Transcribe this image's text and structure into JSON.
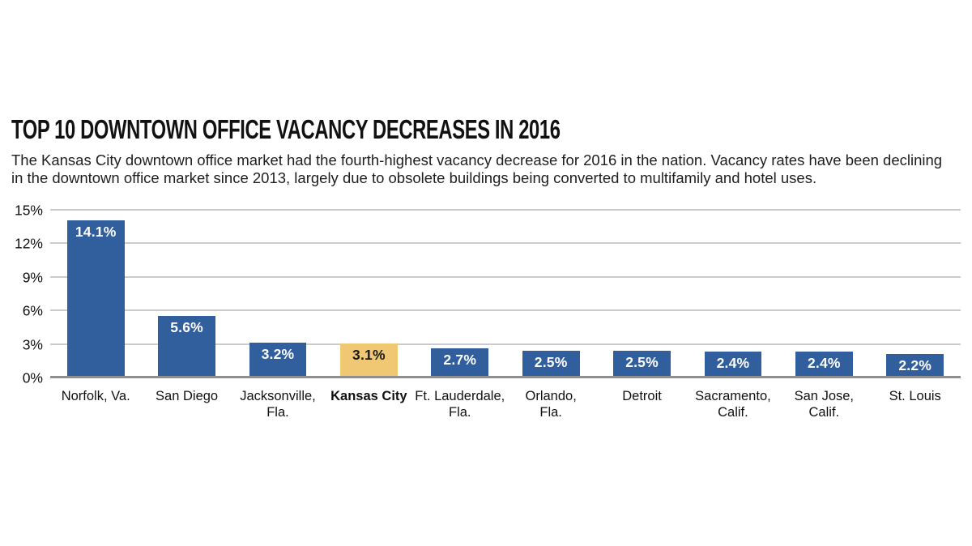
{
  "chart_data": {
    "type": "bar",
    "title": "TOP 10 DOWNTOWN OFFICE VACANCY DECREASES IN 2016",
    "subtitle": "The Kansas City downtown office market had the fourth-highest vacancy decrease for 2016 in the nation. Vacancy rates have been declining in the downtown office market since 2013, largely due to obsolete buildings being converted to multifamily and hotel uses.",
    "categories": [
      "Norfolk, Va.",
      "San Diego",
      "Jacksonville,\nFla.",
      "Kansas City",
      "Ft. Lauderdale,\nFla.",
      "Orlando,\nFla.",
      "Detroit",
      "Sacramento,\nCalif.",
      "San Jose,\nCalif.",
      "St. Louis"
    ],
    "values": [
      14.1,
      5.6,
      3.2,
      3.1,
      2.7,
      2.5,
      2.5,
      2.4,
      2.4,
      2.2
    ],
    "value_labels": [
      "14.1%",
      "5.6%",
      "3.2%",
      "3.1%",
      "2.7%",
      "2.5%",
      "2.5%",
      "2.4%",
      "2.4%",
      "2.2%"
    ],
    "highlight_index": 3,
    "highlight_category": "Kansas City",
    "y_ticks": [
      "15%",
      "12%",
      "9%",
      "6%",
      "3%",
      "0%"
    ],
    "ylabel": "",
    "xlabel": "",
    "ylim": [
      0,
      15
    ],
    "grid": "horizontal",
    "legend": "none",
    "colors": {
      "bar": "#315f9d",
      "highlight_bar": "#f0c873",
      "bar_label": "#ffffff",
      "highlight_bar_label": "#1a1a1a",
      "gridline": "#cbcbcb",
      "baseline": "#8e8e8e",
      "title": "#111111",
      "text": "#1e1e1e",
      "background": "#ffffff"
    }
  }
}
